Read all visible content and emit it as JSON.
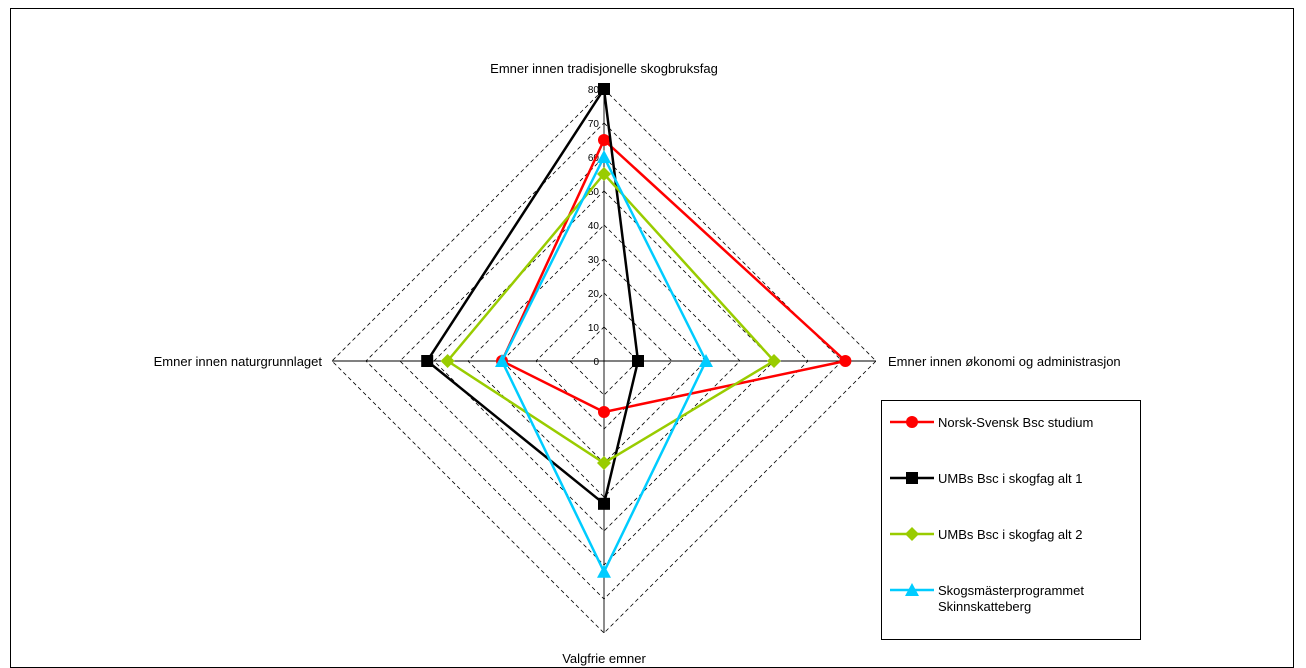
{
  "chart_data": {
    "type": "radar",
    "axes": [
      "Emner innen tradisjonelle skogbruksfag",
      "Emner innen økonomi og administrasjon",
      "Valgfrie emner",
      "Emner innen naturgrunnlaget"
    ],
    "r_range": [
      0,
      80
    ],
    "r_ticks": [
      "0",
      "10",
      "20",
      "30",
      "40",
      "50",
      "60",
      "70",
      "80"
    ],
    "gridlines": "dashed",
    "legend_position": "right",
    "series": [
      {
        "name": "Norsk-Svensk Bsc studium",
        "values": [
          65,
          71,
          15,
          30
        ],
        "color": "#ff0000",
        "marker": "circle"
      },
      {
        "name": "UMBs Bsc i skogfag alt 1",
        "values": [
          80,
          10,
          42,
          52
        ],
        "color": "#000000",
        "marker": "square"
      },
      {
        "name": "UMBs Bsc i skogfag alt 2",
        "values": [
          55,
          50,
          30,
          46
        ],
        "color": "#99cc00",
        "marker": "diamond"
      },
      {
        "name": "Skogsmästerprogrammet Skinnskatteberg",
        "values": [
          60,
          30,
          62,
          30
        ],
        "color": "#00ccff",
        "marker": "triangle"
      }
    ]
  }
}
